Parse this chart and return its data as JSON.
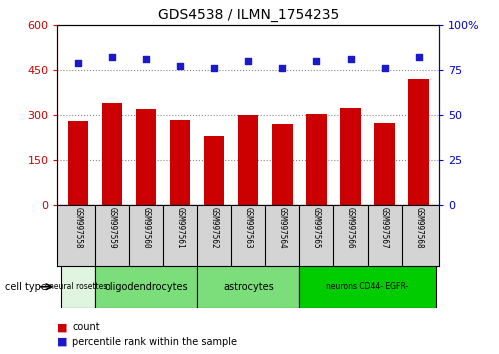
{
  "title": "GDS4538 / ILMN_1754235",
  "samples": [
    "GSM997558",
    "GSM997559",
    "GSM997560",
    "GSM997561",
    "GSM997562",
    "GSM997563",
    "GSM997564",
    "GSM997565",
    "GSM997566",
    "GSM997567",
    "GSM997568"
  ],
  "counts": [
    280,
    340,
    320,
    283,
    230,
    300,
    270,
    305,
    325,
    275,
    420
  ],
  "percentile_ranks": [
    79,
    82,
    81,
    77,
    76,
    80,
    76,
    80,
    81,
    76,
    82
  ],
  "ylim_left": [
    0,
    600
  ],
  "ylim_right": [
    0,
    100
  ],
  "yticks_left": [
    0,
    150,
    300,
    450,
    600
  ],
  "yticks_right": [
    0,
    25,
    50,
    75,
    100
  ],
  "bar_color": "#cc0000",
  "dot_color": "#1a1acc",
  "cell_types": [
    {
      "label": "neural rosettes",
      "start": 0,
      "end": 1,
      "color": "#e0f5e0"
    },
    {
      "label": "oligodendrocytes",
      "start": 1,
      "end": 4,
      "color": "#7bde7b"
    },
    {
      "label": "astrocytes",
      "start": 4,
      "end": 7,
      "color": "#7bde7b"
    },
    {
      "label": "neurons CD44- EGFR-",
      "start": 7,
      "end": 11,
      "color": "#00cc00"
    }
  ],
  "legend_count_color": "#cc0000",
  "legend_pct_color": "#1a1acc",
  "grid_color": "#888888",
  "tick_label_color_left": "#cc0000",
  "tick_label_color_right": "#0000cc",
  "sample_bg_color": "#d4d4d4",
  "bg_color": "#ffffff"
}
